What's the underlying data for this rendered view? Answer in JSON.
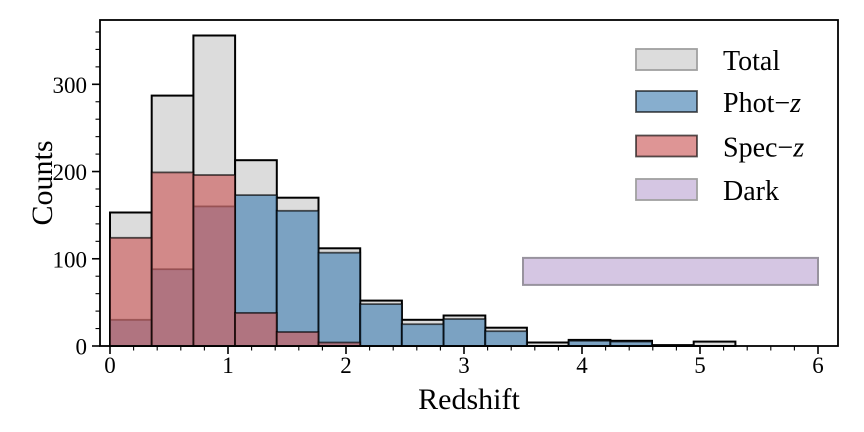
{
  "chart_data": {
    "type": "bar",
    "title": "",
    "xlabel": "Redshift",
    "ylabel": "Counts",
    "xlim": [
      -0.085,
      6.17
    ],
    "ylim": [
      0,
      374
    ],
    "grid": false,
    "bin_edges": [
      0,
      0.353,
      0.707,
      1.06,
      1.413,
      1.767,
      2.12,
      2.473,
      2.827,
      3.18,
      3.533,
      3.887,
      4.24,
      4.593,
      4.947,
      5.3
    ],
    "series": [
      {
        "name": "Total",
        "values": [
          153,
          287,
          356,
          213,
          170,
          112,
          52,
          30,
          35,
          21,
          4,
          7,
          6,
          1,
          5
        ],
        "fill": "#dcdcdc",
        "edge": "#000000"
      },
      {
        "name": "Phot−z",
        "values": [
          30,
          88,
          160,
          173,
          155,
          107,
          48,
          25,
          31,
          17,
          0,
          6,
          5,
          0,
          0
        ],
        "fill": "rgba(70,130,180,0.65)",
        "edge": "rgba(0,0,0,0.65)"
      },
      {
        "name": "Spec−z",
        "values": [
          124,
          199,
          196,
          38,
          16,
          4,
          0,
          0,
          0,
          0,
          0,
          0,
          0,
          0,
          0
        ],
        "fill": "rgba(205,92,92,0.65)",
        "edge": "rgba(0,0,0,0.65)"
      }
    ],
    "dark_band": {
      "label": "Dark",
      "x_start": 3.5,
      "x_end": 6.0,
      "y_bottom": 70,
      "y_top": 101,
      "fill": "#d5c6e3",
      "edge": "#98939e"
    },
    "x_ticks": [
      0,
      1,
      2,
      3,
      4,
      5,
      6
    ],
    "y_ticks": [
      0,
      100,
      200,
      300
    ],
    "x_minor_step": 0.2,
    "y_minor_step": 20,
    "legend": {
      "position": "upper-right",
      "entries": [
        {
          "label": "Total",
          "label_italic": "",
          "fill": "#dcdcdc",
          "edge": "#a0a0a0"
        },
        {
          "label": "Phot−",
          "label_italic": "z",
          "fill": "rgba(70,130,180,0.65)",
          "edge": "rgba(0,0,0,0.65)"
        },
        {
          "label": "Spec−",
          "label_italic": "z",
          "fill": "rgba(205,92,92,0.65)",
          "edge": "rgba(0,0,0,0.65)"
        },
        {
          "label": "Dark",
          "label_italic": "",
          "fill": "#d5c6e3",
          "edge": "#a0a0a0"
        }
      ]
    }
  }
}
